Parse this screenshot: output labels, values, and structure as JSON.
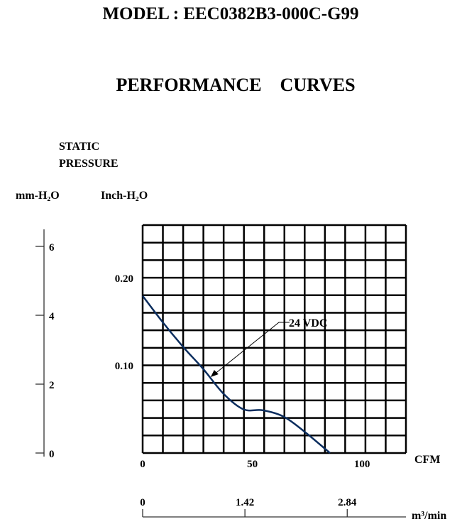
{
  "header": {
    "model": "MODEL : EEC0382B3-000C-G99",
    "subtitle": "PERFORMANCE    CURVES"
  },
  "chart_data": {
    "type": "line",
    "title": "PERFORMANCE CURVES",
    "ylabel_line1": "STATIC",
    "ylabel_line2": "PRESSURE",
    "y_unit_mm": "mm-H₂O",
    "y_unit_inch": "Inch-H₂O",
    "xlabel": "CFM",
    "x2label": "m³/min",
    "xlim": [
      0,
      120
    ],
    "ylim": [
      0,
      0.261
    ],
    "grid": {
      "cols": 13,
      "rows": 13
    },
    "x_ticks": [
      {
        "value": 0,
        "label": "0"
      },
      {
        "value": 50,
        "label": "50"
      },
      {
        "value": 100,
        "label": "100"
      }
    ],
    "y_ticks": [
      {
        "value": 0.2,
        "label": "0.20"
      },
      {
        "value": 0.1,
        "label": "0.10"
      }
    ],
    "mm_ticks": [
      {
        "value": 0,
        "label": "0"
      },
      {
        "value": 2,
        "label": "2"
      },
      {
        "value": 4,
        "label": "4"
      },
      {
        "value": 6,
        "label": "6"
      }
    ],
    "m3_ticks": [
      {
        "value": 0,
        "label": "0"
      },
      {
        "value": 1.42,
        "label": "1.42"
      },
      {
        "value": 2.84,
        "label": "2.84"
      }
    ],
    "series": [
      {
        "name": "24 VDC",
        "color": "#0b2d5e",
        "x": [
          0,
          9.4,
          19,
          27.7,
          37,
          46,
          54.7,
          64.4,
          74,
          85.4
        ],
        "y": [
          0.18,
          0.149,
          0.12,
          0.096,
          0.0675,
          0.05,
          0.049,
          0.0415,
          0.024,
          0
        ]
      }
    ],
    "annotation": {
      "text": "24 VDC",
      "points_to": {
        "x": 31,
        "y": 0.087
      }
    }
  }
}
